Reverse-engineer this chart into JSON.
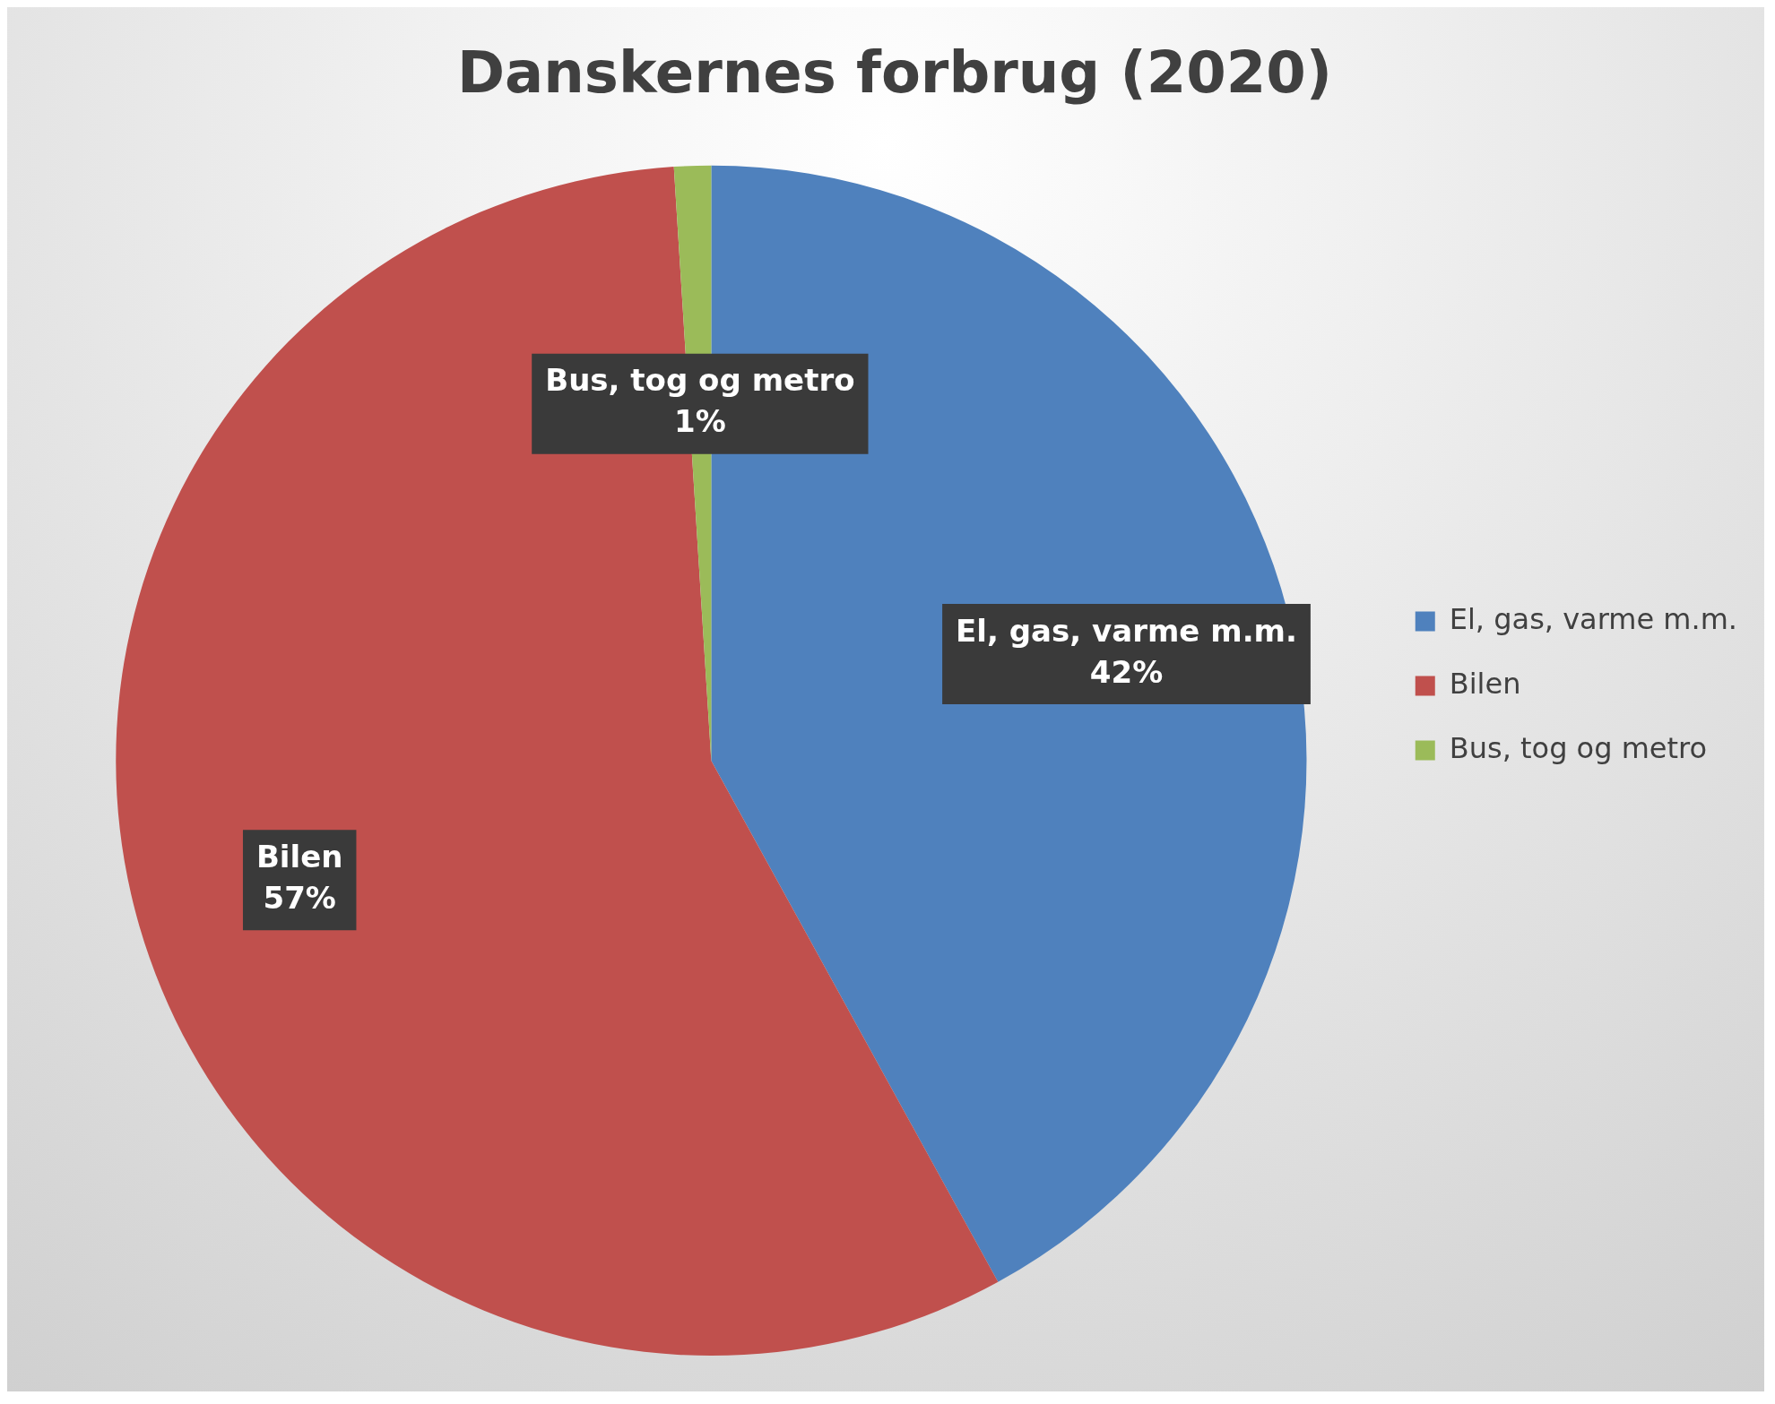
{
  "chart_data": {
    "type": "pie",
    "title": "Danskernes forbrug (2020)",
    "categories": [
      "El, gas, varme m.m.",
      "Bilen",
      "Bus, tog og metro"
    ],
    "values": [
      42,
      57,
      1
    ],
    "value_labels": [
      "42%",
      "57%",
      "1%"
    ],
    "colors": [
      "#4f81bd",
      "#c0504d",
      "#9bbb59"
    ],
    "legend": "right"
  }
}
